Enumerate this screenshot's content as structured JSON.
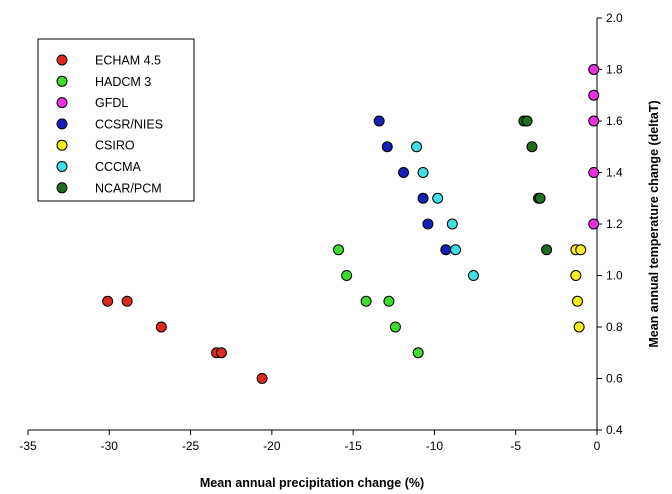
{
  "chart_data": {
    "type": "scatter",
    "xlabel": "Mean annual precipitation change (%)",
    "ylabel": "Mean annual temperature change (deltaT)",
    "xlim": [
      -35,
      0
    ],
    "ylim": [
      0.4,
      2.0
    ],
    "x_ticks": [
      "-35",
      "-30",
      "-25",
      "-20",
      "-15",
      "-10",
      "-5",
      "0"
    ],
    "y_ticks": [
      "0.4",
      "0.6",
      "0.8",
      "1.0",
      "1.2",
      "1.4",
      "1.6",
      "1.8",
      "2.0"
    ],
    "x_tick_values": [
      -35,
      -30,
      -25,
      -20,
      -15,
      -10,
      -5,
      0
    ],
    "y_tick_values": [
      0.4,
      0.6,
      0.8,
      1.0,
      1.2,
      1.4,
      1.6,
      1.8,
      2.0
    ],
    "y_axis_position": "right",
    "legend_position": "top-left",
    "grid": false,
    "series": [
      {
        "name": "ECHAM 4.5",
        "color": "#dd2a1e",
        "x": [
          -30.1,
          -28.9,
          -26.8,
          -23.4,
          -23.1,
          -20.6
        ],
        "y": [
          0.9,
          0.9,
          0.8,
          0.7,
          0.7,
          0.6
        ]
      },
      {
        "name": "HADCM 3",
        "color": "#3ddc2e",
        "x": [
          -15.9,
          -15.4,
          -14.2,
          -12.8,
          -12.4,
          -11.0
        ],
        "y": [
          1.1,
          1.0,
          0.9,
          0.9,
          0.8,
          0.7
        ]
      },
      {
        "name": "GFDL",
        "color": "#e832e0",
        "x": [
          -0.2,
          -0.2,
          -0.2,
          -0.2,
          -0.2
        ],
        "y": [
          1.8,
          1.7,
          1.6,
          1.4,
          1.2
        ]
      },
      {
        "name": "CCSR/NIES",
        "color": "#1620b8",
        "x": [
          -13.4,
          -12.9,
          -11.9,
          -10.7,
          -10.4,
          -9.3
        ],
        "y": [
          1.6,
          1.5,
          1.4,
          1.3,
          1.2,
          1.1
        ]
      },
      {
        "name": "CSIRO",
        "color": "#f6ee1a",
        "x": [
          -1.3,
          -1.3,
          -1.2,
          -1.1,
          -1.0
        ],
        "y": [
          1.1,
          1.0,
          0.9,
          0.8,
          1.1
        ]
      },
      {
        "name": "CCCMA",
        "color": "#3ee0e4",
        "x": [
          -11.1,
          -10.7,
          -9.8,
          -8.9,
          -8.7,
          -7.6
        ],
        "y": [
          1.5,
          1.4,
          1.3,
          1.2,
          1.1,
          1.0
        ]
      },
      {
        "name": "NCAR/PCM",
        "color": "#1f6b22",
        "x": [
          -4.5,
          -4.3,
          -4.0,
          -3.6,
          -3.5,
          -3.1
        ],
        "y": [
          1.6,
          1.6,
          1.5,
          1.3,
          1.3,
          1.1
        ]
      }
    ]
  }
}
